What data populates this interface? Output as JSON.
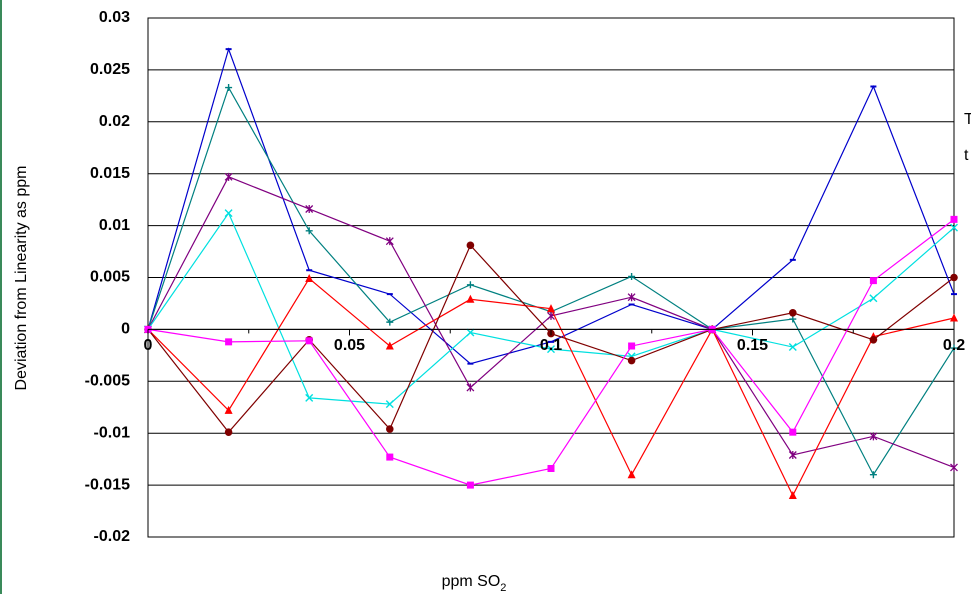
{
  "chart_data": {
    "type": "line",
    "title": "",
    "xlabel": "ppm SO",
    "xlabel_sub": "2",
    "ylabel": "Deviation from Linearity as ppm",
    "xlim": [
      0,
      0.2
    ],
    "ylim": [
      -0.02,
      0.03
    ],
    "x_ticks": [
      "0",
      "0.05",
      "0.1",
      "0.15",
      "0.2"
    ],
    "y_ticks": [
      "0.03",
      "0.025",
      "0.02",
      "0.015",
      "0.01",
      "0.005",
      "0",
      "-0.005",
      "-0.01",
      "-0.015",
      "-0.02"
    ],
    "grid": "horizontal",
    "legend": "none",
    "x": [
      0,
      0.02,
      0.04,
      0.06,
      0.08,
      0.1,
      0.12,
      0.14,
      0.16,
      0.18,
      0.2
    ],
    "series": [
      {
        "color": "#0000cc",
        "marker": "dash",
        "values": [
          0,
          0.027,
          0.0057,
          0.0034,
          -0.0033,
          -0.0012,
          0.0024,
          0,
          0.0067,
          0.0234,
          0.0034
        ]
      },
      {
        "color": "#008080",
        "marker": "plus",
        "values": [
          0,
          0.0233,
          0.0095,
          0.0007,
          0.0043,
          0.0017,
          0.0051,
          0,
          0.001,
          -0.014,
          -0.0018
        ]
      },
      {
        "color": "#800080",
        "marker": "star",
        "values": [
          0,
          0.0147,
          0.0116,
          0.0085,
          -0.0056,
          0.0013,
          0.0031,
          0,
          -0.0121,
          -0.0103,
          -0.0133
        ]
      },
      {
        "color": "#00e0e0",
        "marker": "cross",
        "values": [
          0,
          0.0112,
          -0.0066,
          -0.0072,
          -0.0003,
          -0.0019,
          -0.0026,
          0,
          -0.0017,
          0.003,
          0.0098
        ]
      },
      {
        "color": "#ff0000",
        "marker": "triangle",
        "values": [
          0,
          -0.0078,
          0.0049,
          -0.0016,
          0.0029,
          0.002,
          -0.014,
          0,
          -0.016,
          -0.0007,
          0.0011
        ]
      },
      {
        "color": "#800000",
        "marker": "circle",
        "values": [
          0,
          -0.0099,
          -0.001,
          -0.0096,
          0.0081,
          -0.0004,
          -0.003,
          0,
          0.0016,
          -0.001,
          0.005
        ]
      },
      {
        "color": "#ff00ff",
        "marker": "square",
        "values": [
          0,
          -0.0012,
          -0.0011,
          -0.0123,
          -0.015,
          -0.0134,
          -0.0016,
          0,
          -0.0099,
          0.0047,
          0.0106
        ]
      }
    ],
    "edge_text": [
      "T",
      "t"
    ]
  }
}
